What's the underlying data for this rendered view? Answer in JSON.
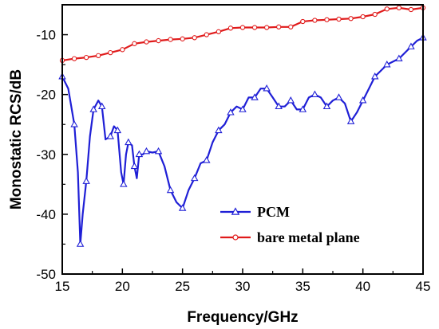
{
  "chart_data": {
    "type": "line",
    "xlabel": "Frequency/GHz",
    "ylabel": "Monostatic RCS/dB",
    "xlim": [
      15,
      45
    ],
    "ylim": [
      -50,
      -5
    ],
    "xticks": [
      15,
      20,
      25,
      30,
      35,
      40,
      45
    ],
    "yticks": [
      -50,
      -40,
      -30,
      -20,
      -10
    ],
    "grid": false,
    "legend_position": "bottom-right",
    "series": [
      {
        "name": "PCM",
        "color": "#1f1fd6",
        "marker": "triangle",
        "x": [
          15,
          15.5,
          16.0,
          16.3,
          16.5,
          16.7,
          17.0,
          17.3,
          17.6,
          18.0,
          18.3,
          18.6,
          19.0,
          19.3,
          19.6,
          19.9,
          20.1,
          20.3,
          20.5,
          20.8,
          21.0,
          21.2,
          21.4,
          21.7,
          22.0,
          22.5,
          23.0,
          23.5,
          24.0,
          24.5,
          25.0,
          25.5,
          26.0,
          26.5,
          27.0,
          27.5,
          28.0,
          28.5,
          29.0,
          29.5,
          30.0,
          30.5,
          31.0,
          31.5,
          32.0,
          32.5,
          33.0,
          33.5,
          34.0,
          34.5,
          35.0,
          35.5,
          36.0,
          36.5,
          37.0,
          37.5,
          38.0,
          38.5,
          39.0,
          39.5,
          40.0,
          40.5,
          41.0,
          41.5,
          42.0,
          42.5,
          43.0,
          43.5,
          44.0,
          44.5,
          45.0
        ],
        "values": [
          -17.0,
          -19.0,
          -25.0,
          -33.0,
          -45.0,
          -40.0,
          -34.5,
          -27.0,
          -22.5,
          -21.0,
          -22.0,
          -27.5,
          -27.0,
          -25.3,
          -26.0,
          -33.0,
          -35.0,
          -30.0,
          -28.0,
          -28.5,
          -32.0,
          -34.0,
          -30.0,
          -30.0,
          -29.5,
          -29.7,
          -29.5,
          -32.0,
          -36.0,
          -38.0,
          -39.0,
          -36.0,
          -34.0,
          -31.5,
          -31.0,
          -28.0,
          -26.0,
          -25.0,
          -23.0,
          -22.0,
          -22.5,
          -20.5,
          -20.5,
          -19.0,
          -19.0,
          -20.5,
          -22.0,
          -22.0,
          -21.0,
          -22.5,
          -22.5,
          -20.5,
          -20.0,
          -20.5,
          -22.0,
          -21.0,
          -20.5,
          -21.5,
          -24.5,
          -23.0,
          -21.0,
          -19.0,
          -17.0,
          -16.0,
          -15.0,
          -14.5,
          -14.0,
          -13.0,
          -12.0,
          -11.0,
          -10.5
        ]
      },
      {
        "name": "bare metal plane",
        "color": "#e01b1b",
        "marker": "circle",
        "x": [
          15,
          16,
          17,
          18,
          19,
          20,
          21,
          22,
          23,
          24,
          25,
          26,
          27,
          28,
          29,
          30,
          31,
          32,
          33,
          34,
          35,
          36,
          37,
          38,
          39,
          40,
          41,
          42,
          43,
          44,
          45
        ],
        "values": [
          -14.3,
          -14.0,
          -13.8,
          -13.5,
          -13.0,
          -12.5,
          -11.5,
          -11.2,
          -11.0,
          -10.8,
          -10.7,
          -10.5,
          -10.0,
          -9.5,
          -8.9,
          -8.8,
          -8.8,
          -8.8,
          -8.7,
          -8.7,
          -7.8,
          -7.6,
          -7.5,
          -7.4,
          -7.3,
          -7.0,
          -6.6,
          -5.7,
          -5.5,
          -5.8,
          -5.5
        ]
      }
    ]
  }
}
